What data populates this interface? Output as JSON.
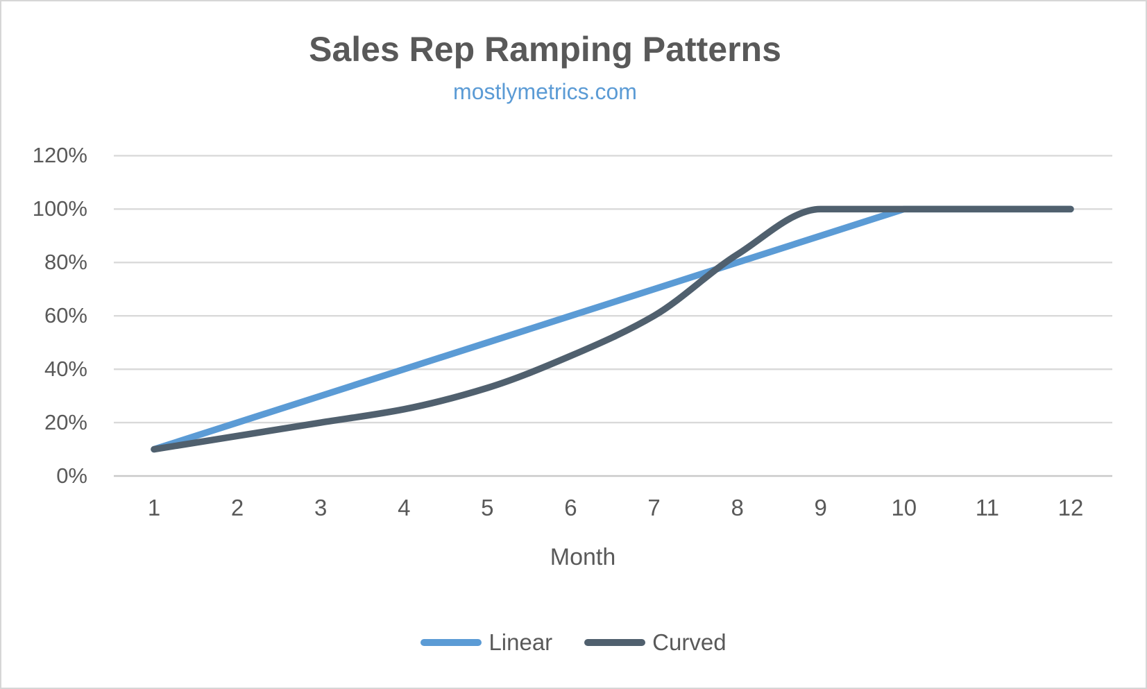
{
  "chart_data": {
    "type": "line",
    "title": "Sales Rep Ramping Patterns",
    "subtitle": "mostlymetrics.com",
    "xlabel": "Month",
    "x": [
      1,
      2,
      3,
      4,
      5,
      6,
      7,
      8,
      9,
      10,
      11,
      12
    ],
    "series": [
      {
        "name": "Linear",
        "color": "#5B9BD5",
        "smooth": false,
        "values": [
          10,
          20,
          30,
          40,
          50,
          60,
          70,
          80,
          90,
          100,
          100,
          100
        ]
      },
      {
        "name": "Curved",
        "color": "#50606E",
        "smooth": true,
        "values": [
          10,
          15,
          20,
          25,
          33,
          45,
          60,
          83,
          100,
          100,
          100,
          100
        ]
      }
    ],
    "ylim": [
      0,
      120
    ],
    "yticks": [
      0,
      20,
      40,
      60,
      80,
      100,
      120
    ],
    "ytick_labels": [
      "0%",
      "20%",
      "40%",
      "60%",
      "80%",
      "100%",
      "120%"
    ],
    "grid": true,
    "legend_position": "bottom"
  },
  "styles": {
    "title_color": "#595959",
    "subtitle_color": "#5B9BD5",
    "axis_text_color": "#595959",
    "gridline_color": "#D9D9D9",
    "zero_line_color": "#C9C9C9",
    "background": "#FFFFFF",
    "frame_border": "#D6D6D6"
  }
}
